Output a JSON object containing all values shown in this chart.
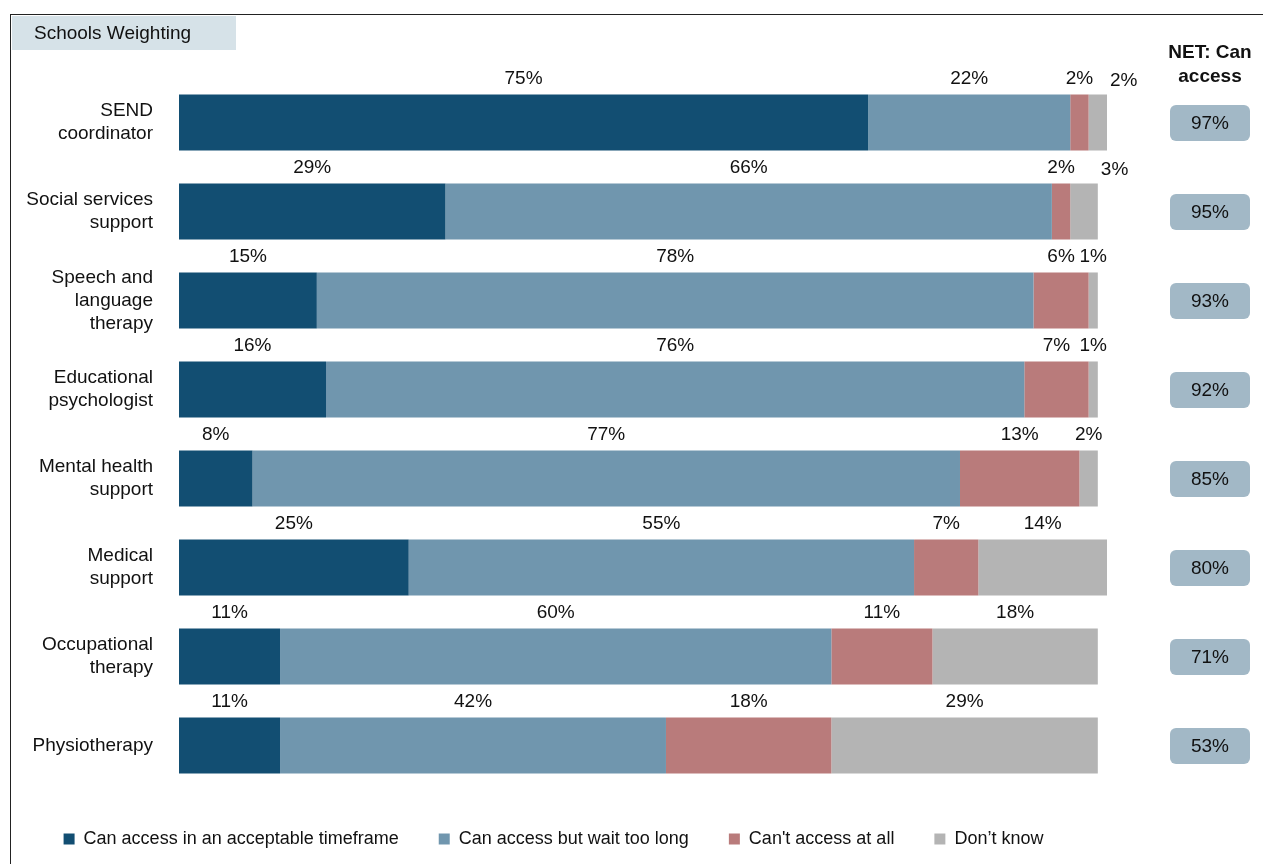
{
  "chart_data": [
    {
      "type": "bar",
      "orientation": "horizontal",
      "stacked": true,
      "title": "Schools Weighting",
      "categories": [
        "SEND coordinator",
        "Social services support",
        "Speech and language therapy",
        "Educational psychologist",
        "Mental health support",
        "Medical support",
        "Occupational therapy",
        "Physiotherapy"
      ],
      "series": [
        {
          "name": "Can access in an acceptable timeframe",
          "color": "#124e72",
          "values": [
            75,
            29,
            15,
            16,
            8,
            25,
            11,
            11
          ],
          "value_labels": [
            "75%",
            "29%",
            "15%",
            "16%",
            "8%",
            "25%",
            "11%",
            "11%"
          ]
        },
        {
          "name": "Can access but wait too long",
          "color": "#7096ae",
          "values": [
            22,
            66,
            78,
            76,
            77,
            55,
            60,
            42
          ],
          "value_labels": [
            "22%",
            "66%",
            "78%",
            "76%",
            "77%",
            "55%",
            "60%",
            "42%"
          ]
        },
        {
          "name": "Can't access at all",
          "color": "#b97b7b",
          "values": [
            2,
            2,
            6,
            7,
            13,
            7,
            11,
            18
          ],
          "value_labels": [
            "2%",
            "2%",
            "6%",
            "7%",
            "13%",
            "7%",
            "11%",
            "18%"
          ]
        },
        {
          "name": "Don’t know",
          "color": "#b4b4b4",
          "values": [
            2,
            3,
            1,
            1,
            2,
            14,
            18,
            29
          ],
          "value_labels": [
            "2%",
            "3%",
            "1%",
            "1%",
            "2%",
            "14%",
            "18%",
            "29%"
          ]
        }
      ],
      "xlim": [
        0,
        101
      ],
      "legend": "bottom",
      "tick_labels": "y"
    },
    {
      "type": "other",
      "title": "NET: Can access",
      "annotations": [
        "97%",
        "95%",
        "93%",
        "92%",
        "85%",
        "80%",
        "71%",
        "53%"
      ]
    }
  ]
}
